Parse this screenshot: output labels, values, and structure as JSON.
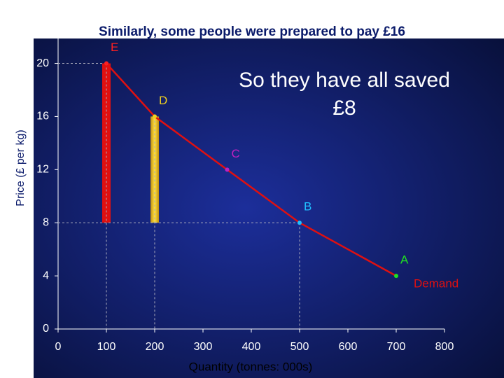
{
  "chart_data": {
    "type": "line",
    "title": "Similarly, some people were prepared to pay £16",
    "x_label": "Quantity (tonnes: 000s)",
    "y_label": "Price (£ per kg)",
    "annotation": [
      "So they have all saved",
      "£8"
    ],
    "xlim": [
      0,
      800
    ],
    "xticks": [
      0,
      100,
      200,
      300,
      400,
      500,
      600,
      700,
      800
    ],
    "ylim": [
      0,
      22.4
    ],
    "yticks": [
      0,
      4,
      8,
      12,
      16,
      20
    ],
    "series": [
      {
        "name": "Demand",
        "color": "#e01010",
        "x": [
          100,
          200,
          350,
          500,
          700
        ],
        "values": [
          20,
          16,
          12,
          8,
          4
        ],
        "point_labels": [
          "E",
          "D",
          "C",
          "B",
          "A"
        ],
        "point_colors": [
          "#ff2020",
          "#f0d020",
          "#c020c0",
          "#20c0ff",
          "#20e020"
        ]
      }
    ],
    "bars": {
      "x": [
        100,
        200
      ],
      "low": [
        8,
        8
      ],
      "high": [
        20,
        16
      ],
      "colors": [
        "#e01010",
        "#f0d020"
      ]
    }
  }
}
